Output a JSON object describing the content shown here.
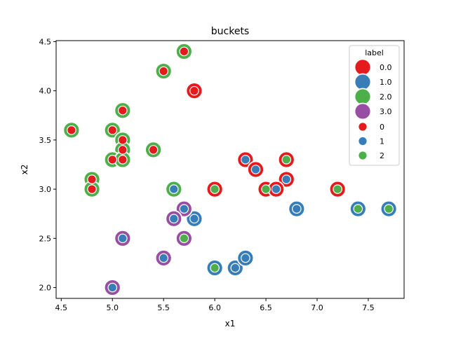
{
  "chart_data": {
    "type": "scatter",
    "title": "buckets",
    "xlabel": "x1",
    "ylabel": "x2",
    "xlim": [
      4.45,
      7.85
    ],
    "ylim": [
      1.89,
      4.51
    ],
    "xticks": [
      "4.5",
      "5.0",
      "5.5",
      "6.0",
      "6.5",
      "7.0",
      "7.5"
    ],
    "yticks": [
      "2.0",
      "2.5",
      "3.0",
      "3.5",
      "4.0",
      "4.5"
    ],
    "grid": false,
    "legend": {
      "placement": "top-right",
      "title": "label",
      "size_entries": [
        {
          "label": "0.0",
          "color": "#e41a1c"
        },
        {
          "label": "1.0",
          "color": "#377eb8"
        },
        {
          "label": "2.0",
          "color": "#4daf4a"
        },
        {
          "label": "3.0",
          "color": "#984ea3"
        }
      ],
      "hue_entries": [
        {
          "label": "0",
          "color": "#e41a1c"
        },
        {
          "label": "1",
          "color": "#377eb8"
        },
        {
          "label": "2",
          "color": "#4daf4a"
        }
      ]
    },
    "layers": [
      {
        "name": "0.0",
        "marker": "large",
        "color": "#e41a1c",
        "points": [
          [
            5.7,
            4.4
          ],
          [
            5.5,
            4.2
          ],
          [
            5.8,
            4.0
          ],
          [
            5.1,
            3.8
          ],
          [
            4.6,
            3.6
          ],
          [
            5.0,
            3.6
          ],
          [
            5.1,
            3.5
          ],
          [
            5.4,
            3.4
          ],
          [
            5.1,
            3.4
          ],
          [
            5.0,
            3.3
          ],
          [
            5.1,
            3.3
          ],
          [
            4.8,
            3.1
          ],
          [
            4.8,
            3.0
          ],
          [
            6.0,
            3.0
          ],
          [
            6.3,
            3.3
          ],
          [
            6.7,
            3.3
          ],
          [
            6.4,
            3.2
          ],
          [
            6.7,
            3.1
          ],
          [
            6.5,
            3.0
          ],
          [
            6.6,
            3.0
          ],
          [
            7.2,
            3.0
          ]
        ]
      },
      {
        "name": "1.0",
        "marker": "large",
        "color": "#377eb8",
        "points": [
          [
            5.6,
            3.0
          ],
          [
            5.6,
            2.7
          ],
          [
            5.8,
            2.7
          ],
          [
            6.8,
            2.8
          ],
          [
            7.4,
            2.8
          ],
          [
            7.7,
            2.8
          ],
          [
            6.0,
            2.2
          ],
          [
            6.2,
            2.2
          ],
          [
            6.3,
            2.3
          ]
        ]
      },
      {
        "name": "2.0",
        "marker": "large",
        "color": "#4daf4a",
        "points": [
          [
            5.7,
            4.4
          ],
          [
            5.5,
            4.2
          ],
          [
            5.1,
            3.8
          ],
          [
            4.6,
            3.6
          ],
          [
            5.0,
            3.6
          ],
          [
            5.1,
            3.5
          ],
          [
            5.4,
            3.4
          ],
          [
            5.1,
            3.4
          ],
          [
            5.0,
            3.3
          ],
          [
            5.1,
            3.3
          ],
          [
            4.8,
            3.1
          ],
          [
            4.8,
            3.0
          ],
          [
            5.6,
            3.0
          ]
        ]
      },
      {
        "name": "3.0",
        "marker": "large",
        "color": "#984ea3",
        "points": [
          [
            5.7,
            2.8
          ],
          [
            5.6,
            2.7
          ],
          [
            5.1,
            2.5
          ],
          [
            5.7,
            2.5
          ],
          [
            5.5,
            2.3
          ],
          [
            5.0,
            2.0
          ]
        ]
      },
      {
        "name": "0",
        "marker": "small",
        "color": "#e41a1c",
        "points": [
          [
            5.7,
            4.4
          ],
          [
            5.5,
            4.2
          ],
          [
            5.8,
            4.0
          ],
          [
            5.1,
            3.8
          ],
          [
            4.6,
            3.6
          ],
          [
            5.0,
            3.6
          ],
          [
            5.1,
            3.5
          ],
          [
            5.4,
            3.4
          ],
          [
            5.1,
            3.4
          ],
          [
            5.0,
            3.3
          ],
          [
            5.1,
            3.3
          ],
          [
            4.8,
            3.1
          ],
          [
            4.8,
            3.0
          ]
        ]
      },
      {
        "name": "1",
        "marker": "small",
        "color": "#377eb8",
        "points": [
          [
            6.3,
            3.3
          ],
          [
            6.4,
            3.2
          ],
          [
            6.7,
            3.1
          ],
          [
            6.6,
            3.0
          ],
          [
            5.6,
            3.0
          ],
          [
            5.7,
            2.8
          ],
          [
            5.6,
            2.7
          ],
          [
            5.8,
            2.7
          ],
          [
            6.8,
            2.8
          ],
          [
            5.1,
            2.5
          ],
          [
            5.5,
            2.3
          ],
          [
            6.3,
            2.3
          ],
          [
            6.2,
            2.2
          ],
          [
            5.0,
            2.0
          ]
        ]
      },
      {
        "name": "2",
        "marker": "small",
        "color": "#4daf4a",
        "points": [
          [
            6.7,
            3.3
          ],
          [
            6.0,
            3.0
          ],
          [
            6.5,
            3.0
          ],
          [
            7.2,
            3.0
          ],
          [
            7.4,
            2.8
          ],
          [
            7.7,
            2.8
          ],
          [
            5.7,
            2.5
          ],
          [
            6.0,
            2.2
          ]
        ]
      }
    ]
  }
}
